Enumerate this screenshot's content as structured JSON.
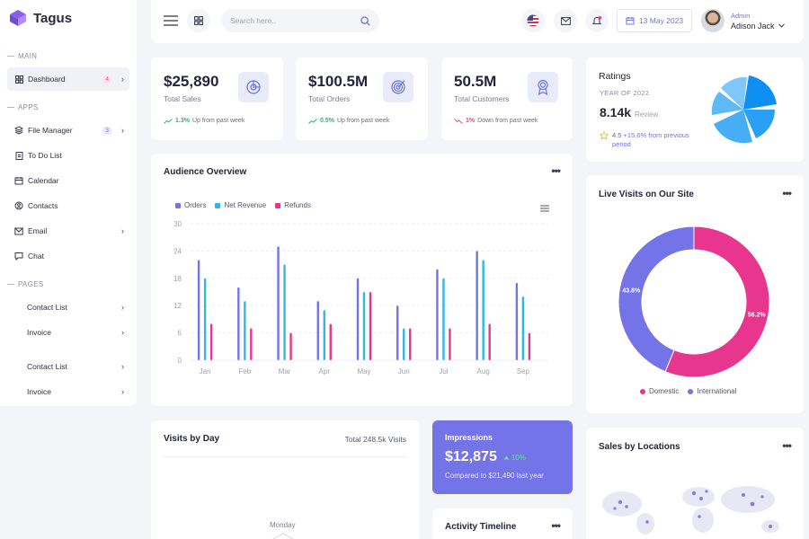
{
  "brand": {
    "name": "Tagus",
    "color": "#7474e8"
  },
  "sidebar": {
    "sections": {
      "main": "MAIN",
      "apps": "APPS",
      "pages": "PAGES"
    },
    "items": [
      {
        "label": "Dashboard",
        "icon": "grid-icon",
        "badge": "4",
        "active": true
      },
      {
        "label": "File Manager",
        "icon": "layers-icon",
        "badge": "3"
      },
      {
        "label": "To Do List",
        "icon": "clipboard-icon"
      },
      {
        "label": "Calendar",
        "icon": "calendar-icon"
      },
      {
        "label": "Contacts",
        "icon": "user-circle-icon"
      },
      {
        "label": "Email",
        "icon": "mail-icon"
      },
      {
        "label": "Chat",
        "icon": "chat-icon"
      },
      {
        "label": "Contact List"
      },
      {
        "label": "Invoice"
      },
      {
        "label": "Contact List"
      },
      {
        "label": "Invoice"
      }
    ]
  },
  "header": {
    "search_placeholder": "Search here..",
    "date": "13 May 2023",
    "user_role": "Admin",
    "user_name": "Adison Jack"
  },
  "stats": [
    {
      "value": "$25,890",
      "label": "Total Sales",
      "change": "1.3%",
      "change_text": "Up from past week",
      "trend": "up",
      "icon": "pie-chart-icon"
    },
    {
      "value": "$100.5M",
      "label": "Total Orders",
      "change": "0.5%",
      "change_text": "Up from past week",
      "trend": "up",
      "icon": "target-icon"
    },
    {
      "value": "50.5M",
      "label": "Total Customers",
      "change": "1%",
      "change_text": "Down from past week",
      "trend": "down",
      "icon": "award-icon"
    }
  ],
  "ratings": {
    "title": "Ratings",
    "subtitle": "YEAR OF 2022",
    "value": "8.14k",
    "value_suffix": "Review",
    "score": "4.5",
    "change": "+15.6%",
    "change_text": "from previous period"
  },
  "audience": {
    "title": "Audience Overview"
  },
  "live_visits": {
    "title": "Live Visits on Our Site",
    "legend": [
      "Domestic",
      "International"
    ]
  },
  "visits_by_day": {
    "title": "Visits by Day",
    "total": "Total 248.5k Visits",
    "day_label": "Monday"
  },
  "impressions": {
    "title": "Impressions",
    "value": "$12,875",
    "change": "10%",
    "compare": "Compared to $21,490 last year"
  },
  "activity": {
    "title": "Activity Timeline"
  },
  "sales_locations": {
    "title": "Sales by Locations"
  },
  "chart_data": [
    {
      "type": "bar",
      "categories": [
        "Jan",
        "Feb",
        "Mar",
        "Apr",
        "May",
        "Jun",
        "Jul",
        "Aug",
        "Sep"
      ],
      "series": [
        {
          "name": "Orders",
          "color": "#7474e8",
          "values": [
            22,
            16,
            25,
            13,
            18,
            12,
            20,
            24,
            17
          ]
        },
        {
          "name": "Net Revenue",
          "color": "#31b6ea",
          "values": [
            18,
            13,
            21,
            11,
            15,
            7,
            18,
            22,
            14
          ]
        },
        {
          "name": "Refunds",
          "color": "#e8368f",
          "values": [
            8,
            7,
            6,
            8,
            15,
            7,
            7,
            8,
            6
          ]
        }
      ],
      "yticks": [
        0,
        6,
        12,
        18,
        24,
        30
      ],
      "ylim": [
        0,
        30
      ],
      "legend_position": "top-left",
      "grid": true
    },
    {
      "type": "pie",
      "variant": "donut",
      "labels": [
        "Domestic",
        "International"
      ],
      "values": [
        56.2,
        43.8
      ],
      "value_labels": [
        "56.2%",
        "43.8%"
      ],
      "colors": [
        "#e8368f",
        "#7474e8"
      ]
    }
  ]
}
